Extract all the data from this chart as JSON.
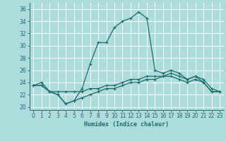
{
  "xlabel": "Humidex (Indice chaleur)",
  "xlim": [
    -0.5,
    23.5
  ],
  "ylim": [
    19.5,
    37
  ],
  "yticks": [
    20,
    22,
    24,
    26,
    28,
    30,
    32,
    34,
    36
  ],
  "xticks": [
    0,
    1,
    2,
    3,
    4,
    5,
    6,
    7,
    8,
    9,
    10,
    11,
    12,
    13,
    14,
    15,
    16,
    17,
    18,
    19,
    20,
    21,
    22,
    23
  ],
  "bg_color": "#aedcdc",
  "grid_color": "#c8eaea",
  "line_color": "#1e6b6b",
  "line1": [
    23.5,
    24.0,
    22.5,
    22.0,
    20.5,
    21.0,
    23.0,
    27.0,
    30.5,
    30.5,
    33.0,
    34.0,
    34.5,
    35.5,
    34.5,
    26.0,
    25.5,
    26.0,
    25.5,
    24.5,
    25.0,
    24.0,
    22.5,
    22.5
  ],
  "line2": [
    23.5,
    23.5,
    22.5,
    22.5,
    22.5,
    22.5,
    22.5,
    23.0,
    23.0,
    23.5,
    23.5,
    24.0,
    24.5,
    24.5,
    25.0,
    25.0,
    25.0,
    25.5,
    25.0,
    24.5,
    25.0,
    24.5,
    23.0,
    22.5
  ],
  "line3": [
    23.5,
    23.5,
    22.5,
    22.0,
    20.5,
    21.0,
    21.5,
    22.0,
    22.5,
    23.0,
    23.0,
    23.5,
    24.0,
    24.0,
    24.5,
    24.5,
    25.0,
    25.0,
    24.5,
    24.0,
    24.5,
    24.0,
    22.5,
    22.5
  ]
}
